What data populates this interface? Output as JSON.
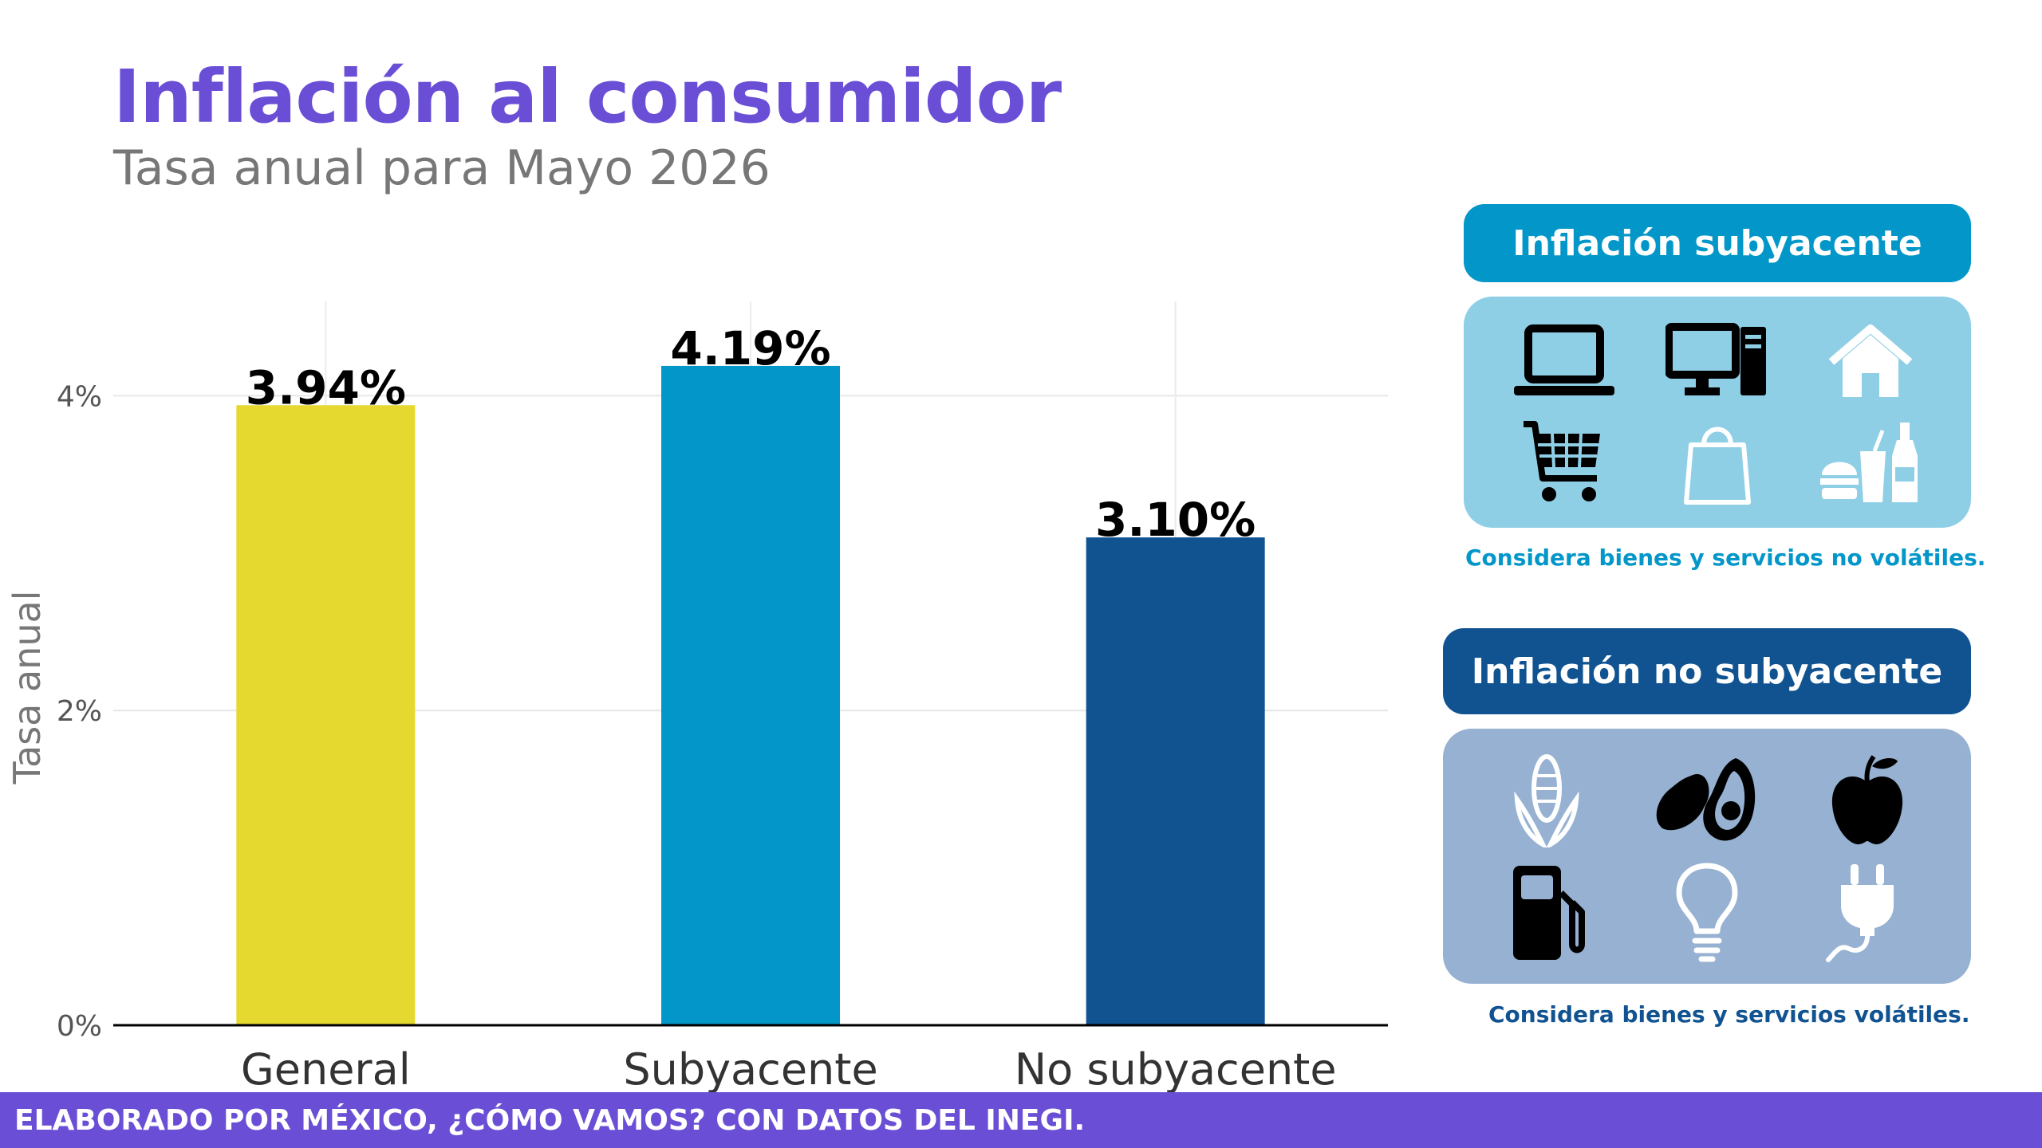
{
  "header": {
    "title": "Inflación al consumidor",
    "subtitle": "Tasa anual para Mayo 2026"
  },
  "chart_data": {
    "type": "bar",
    "categories": [
      "General",
      "Subyacente",
      "No subyacente"
    ],
    "values": [
      3.94,
      4.19,
      3.1
    ],
    "value_labels": [
      "3.94%",
      "4.19%",
      "3.10%"
    ],
    "colors": [
      "#E5D82E",
      "#0397C9",
      "#115391"
    ],
    "ylabel": "Tasa anual",
    "ylim": [
      0,
      4.6
    ],
    "y_ticks": [
      0,
      2,
      4
    ],
    "y_tick_labels": [
      "0%",
      "2%",
      "4%"
    ],
    "grid": true
  },
  "panels": {
    "core": {
      "title": "Inflación subyacente",
      "note": "Considera bienes y servicios no volátiles.",
      "head_color": "#0397C9",
      "box_color": "#8FCFE6",
      "icons": [
        "laptop-icon",
        "desktop-computer-icon",
        "house-icon",
        "shopping-cart-icon",
        "shopping-bag-icon",
        "fast-food-icon"
      ]
    },
    "noncore": {
      "title": "Inflación no subyacente",
      "note": "Considera bienes y servicios volátiles.",
      "head_color": "#115391",
      "box_color": "#96B1D1",
      "icons": [
        "corn-icon",
        "avocado-icon",
        "apple-icon",
        "gas-pump-icon",
        "light-bulb-icon",
        "electric-plug-icon"
      ]
    }
  },
  "footer": {
    "credit": "ELABORADO POR MÉXICO, ¿CÓMO VAMOS? CON DATOS DEL INEGI."
  }
}
